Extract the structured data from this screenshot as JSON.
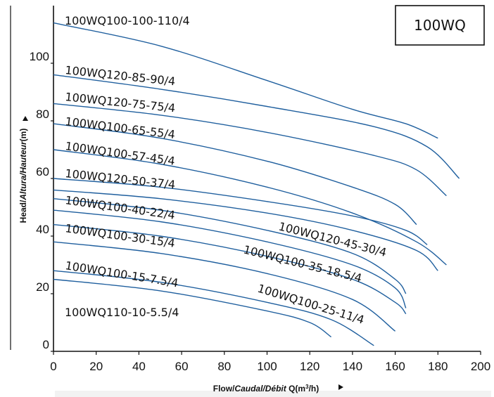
{
  "chart_data": {
    "type": "line",
    "title_box": "100WQ",
    "xlabel": {
      "part1": "Flow/",
      "part2": "Caudal/Débit",
      "part3": " Q(m",
      "sup": "3",
      "part4": "/h)"
    },
    "ylabel": {
      "part1": "Head/",
      "part2": "Altura/Hauteur",
      "part3": "(m)"
    },
    "xlim": [
      0,
      200
    ],
    "ylim": [
      0,
      120
    ],
    "xticks": [
      0,
      20,
      40,
      60,
      80,
      100,
      120,
      140,
      160,
      180,
      200
    ],
    "yticks": [
      0,
      20,
      40,
      60,
      80,
      100
    ],
    "color": "#1f5f9e",
    "series": [
      {
        "name": "100WQ100-100-110/4",
        "x": [
          0,
          50,
          100,
          140,
          165,
          180
        ],
        "y": [
          114,
          106,
          94,
          84,
          79,
          74
        ]
      },
      {
        "name": "100WQ120-85-90/4",
        "x": [
          0,
          50,
          100,
          150,
          175,
          190
        ],
        "y": [
          96,
          91,
          85,
          78,
          71,
          60
        ]
      },
      {
        "name": "100WQ120-75-75/4",
        "x": [
          0,
          50,
          100,
          150,
          170,
          184
        ],
        "y": [
          86,
          82,
          76,
          68,
          63,
          54
        ]
      },
      {
        "name": "100WQ100-65-55/4",
        "x": [
          0,
          50,
          100,
          140,
          160,
          170
        ],
        "y": [
          79,
          74,
          66,
          57,
          51,
          44
        ]
      },
      {
        "name": "100WQ100-57-45/4",
        "x": [
          0,
          50,
          100,
          140,
          170,
          184
        ],
        "y": [
          70,
          65,
          57,
          48,
          38,
          30
        ]
      },
      {
        "name": "100WQ120-50-37/4",
        "x": [
          0,
          50,
          100,
          140,
          165,
          175
        ],
        "y": [
          60,
          57,
          52,
          47,
          42,
          37
        ]
      },
      {
        "name": "100WQ120-45-30/4",
        "x": [
          0,
          50,
          100,
          140,
          170,
          180
        ],
        "y": [
          56,
          53,
          48,
          42,
          35,
          28
        ]
      },
      {
        "name": "100WQ100-40-22/4",
        "x": [
          0,
          50,
          100,
          140,
          160,
          165
        ],
        "y": [
          53,
          49,
          42,
          34,
          25,
          20
        ]
      },
      {
        "name": "100WQ100-35-18.5/4",
        "x": [
          0,
          50,
          100,
          140,
          160,
          165
        ],
        "y": [
          49,
          45,
          38,
          30,
          22,
          15
        ]
      },
      {
        "name": "100WQ100-30-15/4",
        "x": [
          0,
          50,
          100,
          140,
          160,
          165
        ],
        "y": [
          44,
          40,
          33,
          25,
          17,
          13
        ]
      },
      {
        "name": "100WQ100-25-11/4",
        "x": [
          0,
          50,
          100,
          140,
          160
        ],
        "y": [
          38,
          34,
          27,
          18,
          7
        ]
      },
      {
        "name": "100WQ100-15-7.5/4",
        "x": [
          0,
          50,
          100,
          130,
          150
        ],
        "y": [
          28,
          24,
          17,
          11,
          2
        ]
      },
      {
        "name": "100WQ110-10-5.5/4",
        "x": [
          0,
          50,
          100,
          120,
          130
        ],
        "y": [
          25,
          21,
          14,
          10,
          5
        ]
      }
    ],
    "labels": [
      {
        "text": "100WQ100-100-110/4",
        "angle": 0
      },
      {
        "text": "100WQ120-85-90/4",
        "angle": 6
      },
      {
        "text": "100WQ120-75-75/4",
        "angle": 6
      },
      {
        "text": "100WQ100-65-55/4",
        "angle": 7
      },
      {
        "text": "100WQ100-57-45/4",
        "angle": 8
      },
      {
        "text": "100WQ120-50-37/4",
        "angle": 6
      },
      {
        "text": "100WQ100-40-22/4",
        "angle": 8
      },
      {
        "text": "100WQ120-45-30/4",
        "angle": 14
      },
      {
        "text": "100WQ100-30-15/4",
        "angle": 8
      },
      {
        "text": "100WQ100-35-18.5/4",
        "angle": 14
      },
      {
        "text": "100WQ100-15-7.5/4",
        "angle": 9
      },
      {
        "text": "100WQ100-25-11/4",
        "angle": 17
      },
      {
        "text": "100WQ110-10-5.5/4",
        "angle": 0
      }
    ]
  }
}
